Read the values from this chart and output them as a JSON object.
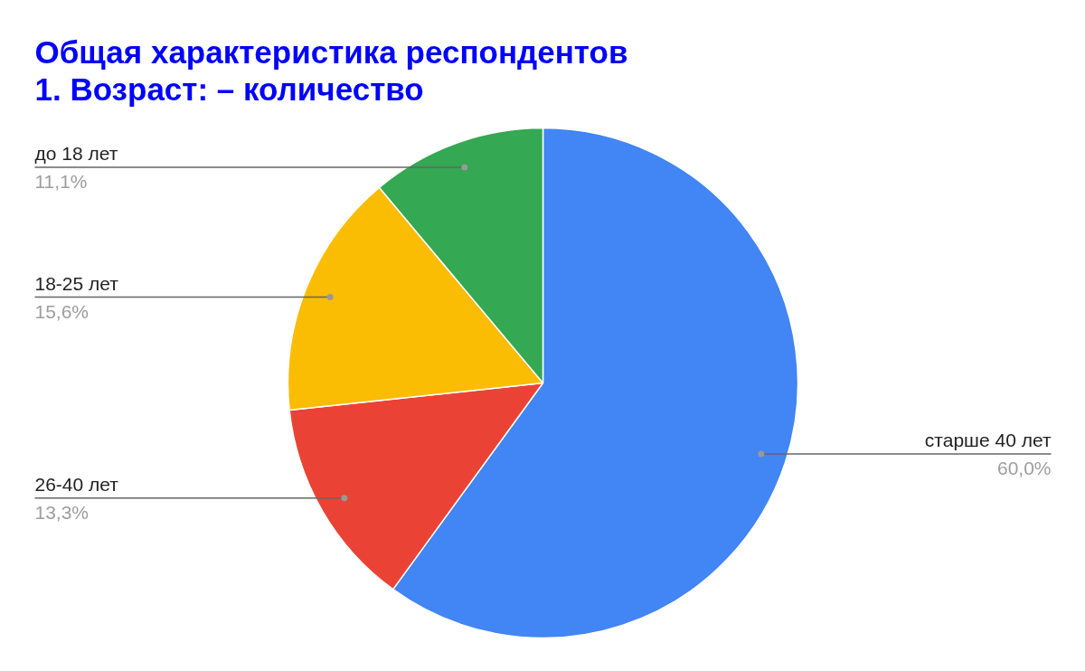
{
  "chart_data": {
    "type": "pie",
    "title": "Общая характеристика респондентов",
    "subtitle": "1. Возраст: – количество",
    "categories": [
      "старше 40 лет",
      "26-40 лет",
      "18-25 лет",
      "до 18 лет"
    ],
    "values": [
      60.0,
      13.3,
      15.6,
      11.1
    ],
    "colors": [
      "#4285f4",
      "#ea4335",
      "#fbbc04",
      "#34a853"
    ],
    "value_labels": [
      "60,0%",
      "13,3%",
      "15,6%",
      "11,1%"
    ]
  }
}
